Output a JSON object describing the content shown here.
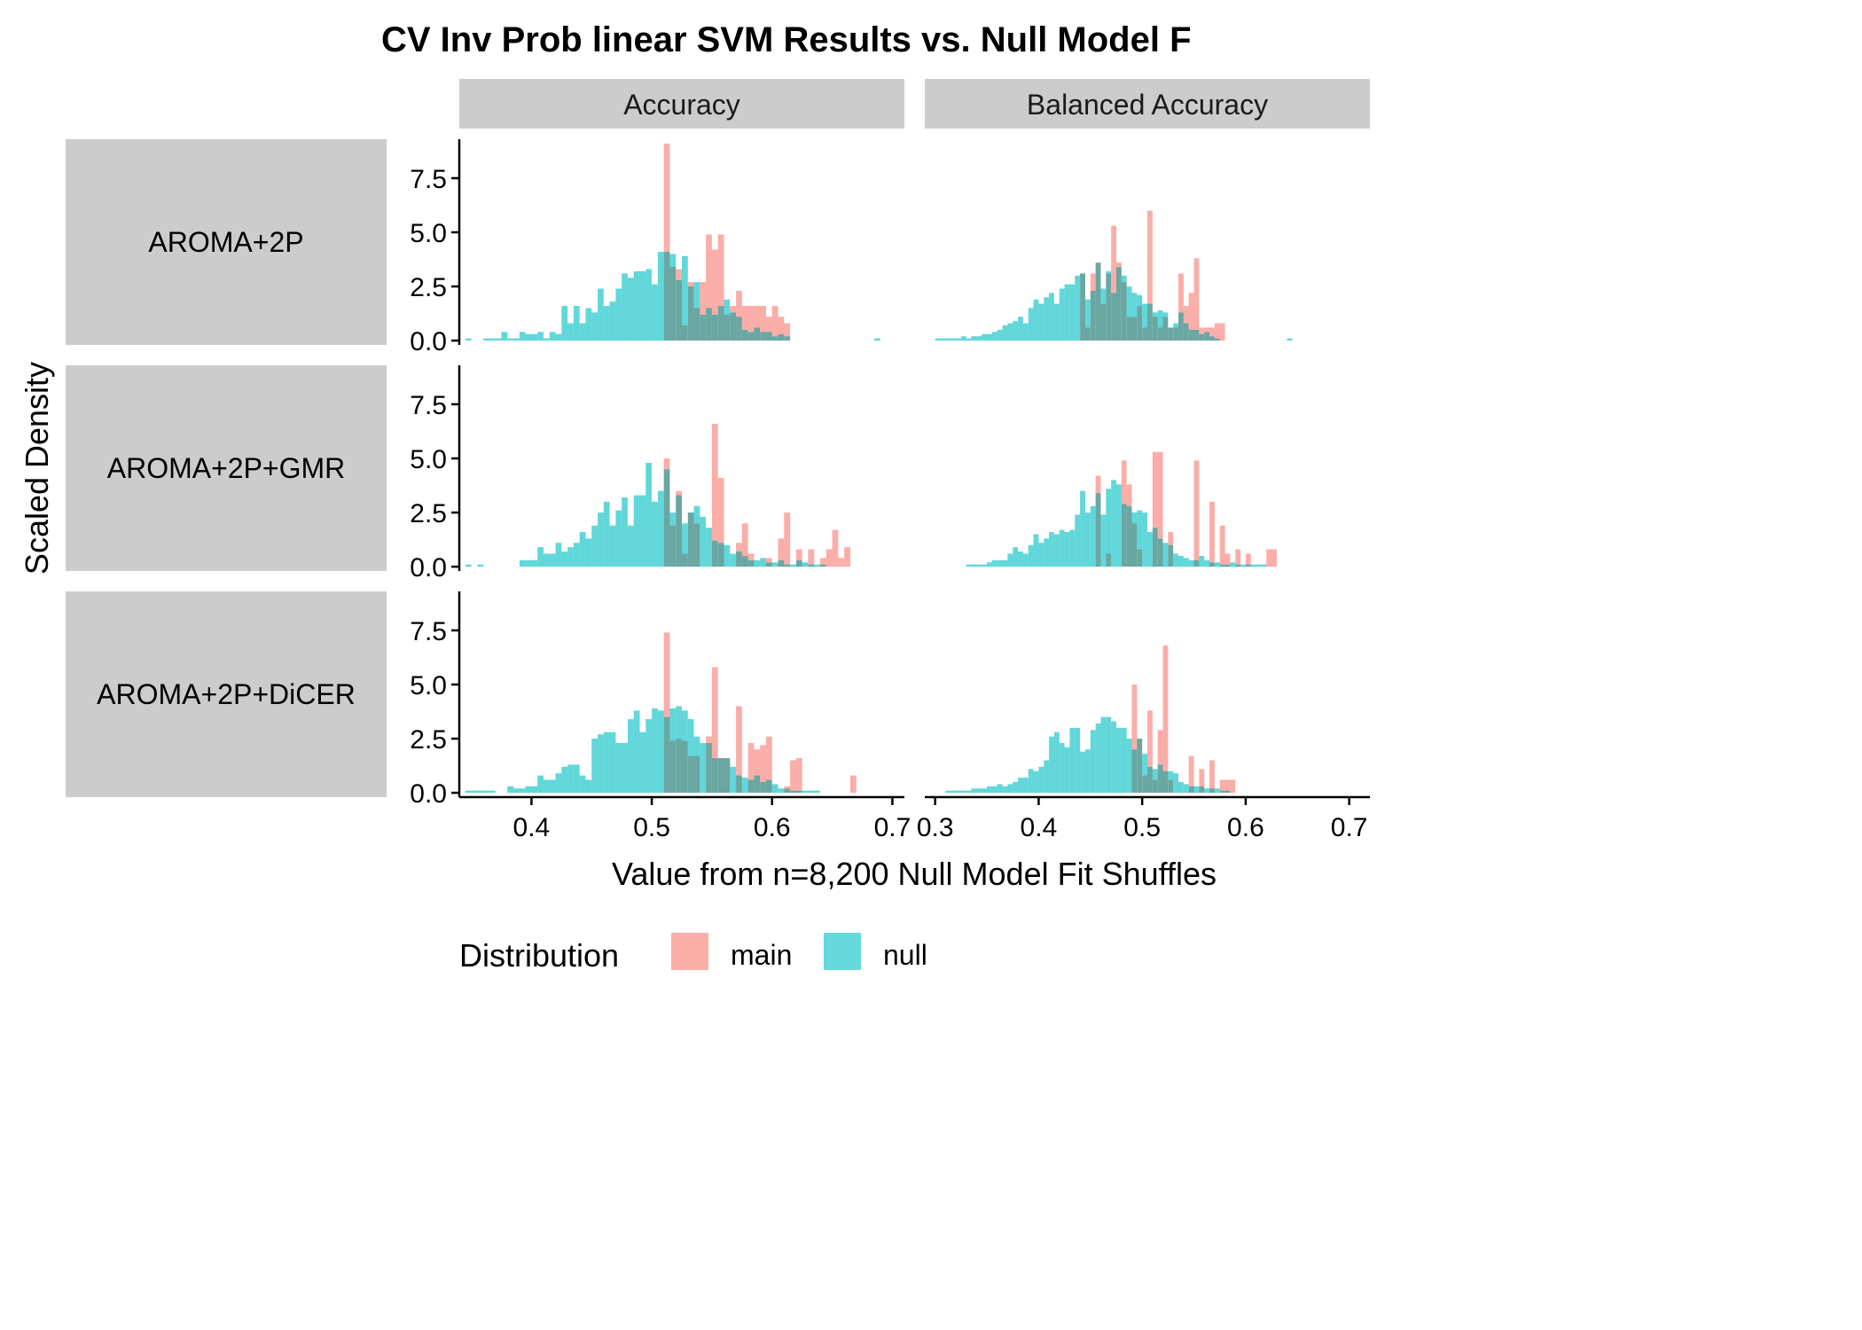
{
  "chart_data": {
    "type": "histogram",
    "title": "CV Inv Prob linear SVM Results vs. Null Model F",
    "xlabel": "Value from n=8,200 Null Model Fit Shuffles",
    "ylabel": "Scaled Density",
    "legend": {
      "title": "Distribution",
      "position": "bottom",
      "items": [
        {
          "name": "main",
          "color": "#F8766D"
        },
        {
          "name": "null",
          "color": "#00BFC4"
        }
      ]
    },
    "overlay_color": "#6AA6A2",
    "grid": false,
    "ylim": [
      -0.2,
      9.3
    ],
    "yticks": [
      0.0,
      2.5,
      5.0,
      7.5
    ],
    "ytick_labels": [
      "0.0",
      "2.5",
      "5.0",
      "7.5"
    ],
    "columns": [
      {
        "label": "Accuracy",
        "xlim": [
          0.34,
          0.71
        ],
        "xticks": [
          0.4,
          0.5,
          0.6,
          0.7
        ],
        "xtick_labels": [
          "0.4",
          "0.5",
          "0.6",
          "0.7"
        ]
      },
      {
        "label": "Balanced Accuracy",
        "xlim": [
          0.29,
          0.72
        ],
        "xticks": [
          0.3,
          0.4,
          0.5,
          0.6,
          0.7
        ],
        "xtick_labels": [
          "0.3",
          "0.4",
          "0.5",
          "0.6",
          "0.7"
        ]
      }
    ],
    "rows": [
      "AROMA+2P",
      "AROMA+2P+GMR",
      "AROMA+2P+DiCER"
    ],
    "panels": [
      {
        "row": 0,
        "col": 0,
        "bin_start": 0.345,
        "bin_width": 0.005,
        "null": [
          0.1,
          0,
          0,
          0.1,
          0.1,
          0.1,
          0.4,
          0.1,
          0.1,
          0.4,
          0.3,
          0.3,
          0.4,
          0.1,
          0.4,
          0.3,
          1.6,
          0.8,
          1.6,
          0.8,
          1.5,
          1.3,
          2.4,
          1.6,
          1.8,
          2.4,
          3.1,
          2.9,
          3.2,
          3.2,
          3.3,
          2.6,
          4.1,
          4.1,
          4.0,
          2.8,
          3.9,
          2.5,
          2.7,
          1.2,
          1.5,
          1.2,
          1.6,
          1.9,
          1.3,
          1.1,
          0.5,
          0.4,
          0.6,
          0.4,
          0.4,
          0.2,
          0.3,
          0.2,
          0,
          0,
          0,
          0,
          0,
          0,
          0,
          0,
          0,
          0,
          0,
          0,
          0,
          0,
          0.1,
          0
        ],
        "main": [
          0,
          0,
          0,
          0,
          0,
          0,
          0,
          0,
          0,
          0,
          0,
          0,
          0,
          0,
          0,
          0,
          0,
          0,
          0,
          0,
          0,
          0,
          0,
          0,
          0,
          0,
          0,
          0,
          0,
          0,
          0,
          0,
          0,
          9.1,
          3.4,
          3.3,
          0.7,
          2.7,
          1.5,
          2.7,
          4.9,
          4.2,
          4.9,
          1.2,
          1.6,
          2.3,
          1.6,
          1.6,
          1.6,
          1.6,
          1.1,
          1.6,
          1.1,
          0.8,
          0,
          0,
          0,
          0,
          0,
          0,
          0,
          0,
          0,
          0,
          0,
          0,
          0,
          0,
          0,
          0
        ]
      },
      {
        "row": 0,
        "col": 1,
        "bin_start": 0.3,
        "bin_width": 0.005,
        "null": [
          0.1,
          0.1,
          0.1,
          0.1,
          0.1,
          0.2,
          0.1,
          0.2,
          0.2,
          0.3,
          0.3,
          0.4,
          0.5,
          0.7,
          0.8,
          0.9,
          1.1,
          0.8,
          1.5,
          1.9,
          1.7,
          2.0,
          2.2,
          1.7,
          2.4,
          2.6,
          2.6,
          3.0,
          3.1,
          1.9,
          2.3,
          3.6,
          2.4,
          3.2,
          2.2,
          3.4,
          3.0,
          2.5,
          2.2,
          2.1,
          1.7,
          1.7,
          1.3,
          1.4,
          1.3,
          0.6,
          0.8,
          1.3,
          0.8,
          0.5,
          0.5,
          0.3,
          0.4,
          0.2,
          0.1,
          0,
          0,
          0,
          0,
          0,
          0,
          0,
          0,
          0,
          0,
          0,
          0,
          0,
          0.1,
          0
        ],
        "main": [
          0,
          0,
          0,
          0,
          0,
          0,
          0,
          0,
          0,
          0,
          0,
          0,
          0,
          0,
          0,
          0,
          0,
          0,
          0,
          0,
          0,
          0,
          0,
          0,
          0,
          0,
          0,
          0,
          3.1,
          0.6,
          3.1,
          3.6,
          1.7,
          3.1,
          5.3,
          3.6,
          2.7,
          1.1,
          1.1,
          1.6,
          0.6,
          6.0,
          1.1,
          0.6,
          1.1,
          0.6,
          0.6,
          3.1,
          1.6,
          2.2,
          3.8,
          0.6,
          0.6,
          0.6,
          0.8,
          0.8,
          0,
          0,
          0,
          0,
          0,
          0,
          0,
          0,
          0,
          0,
          0,
          0,
          0,
          0
        ]
      },
      {
        "row": 1,
        "col": 0,
        "bin_start": 0.345,
        "bin_width": 0.005,
        "null": [
          0.1,
          0,
          0.1,
          0,
          0,
          0,
          0,
          0,
          0,
          0.3,
          0.3,
          0.3,
          0.9,
          0.6,
          0.6,
          1.1,
          0.7,
          0.9,
          1.1,
          1.6,
          1.3,
          1.9,
          2.5,
          3.0,
          1.9,
          2.6,
          3.2,
          1.9,
          3.3,
          3.3,
          4.8,
          3.0,
          3.5,
          4.5,
          2.5,
          3.3,
          2.0,
          2.5,
          2.8,
          2.3,
          1.8,
          1.2,
          1.1,
          1.0,
          0.6,
          0.7,
          0.5,
          0.3,
          0.3,
          0.4,
          0.2,
          0.2,
          0.3,
          0.1,
          0.1,
          0.3,
          0.2,
          0.1,
          0.1,
          0.1,
          0,
          0,
          0,
          0,
          0,
          0,
          0,
          0,
          0,
          0
        ],
        "main": [
          0,
          0,
          0,
          0,
          0,
          0,
          0,
          0,
          0,
          0,
          0,
          0,
          0,
          0,
          0,
          0,
          0,
          0,
          0,
          0,
          0,
          0,
          0,
          0,
          0,
          0,
          0,
          0,
          0,
          0,
          0,
          0,
          0,
          5.0,
          1.9,
          3.5,
          0.6,
          2.5,
          2.0,
          0,
          0,
          6.6,
          4.1,
          0,
          0,
          1.1,
          2.0,
          0.6,
          0,
          0,
          0.4,
          0,
          1.3,
          2.5,
          0,
          0.8,
          0,
          0.8,
          0,
          0.4,
          0.8,
          1.7,
          0.4,
          0.9,
          0,
          0,
          0,
          0,
          0,
          0
        ]
      },
      {
        "row": 1,
        "col": 1,
        "bin_start": 0.33,
        "bin_width": 0.005,
        "null": [
          0.1,
          0.1,
          0.1,
          0.1,
          0.2,
          0.3,
          0.3,
          0.3,
          0.6,
          0.9,
          0.7,
          0.6,
          1.0,
          1.5,
          1.1,
          1.3,
          1.6,
          1.5,
          1.7,
          1.6,
          1.7,
          2.4,
          3.5,
          2.5,
          2.8,
          3.4,
          2.4,
          3.6,
          4.0,
          3.8,
          2.9,
          2.8,
          2.5,
          2.6,
          2.5,
          1.6,
          1.8,
          1.3,
          1.1,
          1.0,
          0.6,
          0.5,
          0.4,
          0.3,
          0.3,
          0.5,
          0.3,
          0.2,
          0.2,
          0.1,
          0.1,
          0.2,
          0.1,
          0.1,
          0.1,
          0.1,
          0.1,
          0.1,
          0,
          0
        ],
        "main": [
          0,
          0,
          0,
          0,
          0,
          0,
          0,
          0,
          0,
          0,
          0,
          0,
          0,
          0,
          0,
          0,
          0,
          0,
          0,
          0,
          0,
          0,
          0,
          0,
          0,
          4.2,
          0,
          0.6,
          0,
          0,
          4.9,
          3.8,
          2.0,
          0.8,
          0,
          0,
          5.3,
          5.3,
          0,
          1.6,
          0,
          0,
          0,
          0,
          4.9,
          0,
          0,
          3.0,
          0,
          1.9,
          0.6,
          0,
          0.8,
          0,
          0.6,
          0,
          0,
          0,
          0.8,
          0.8
        ]
      },
      {
        "row": 2,
        "col": 0,
        "bin_start": 0.345,
        "bin_width": 0.005,
        "null": [
          0.1,
          0.1,
          0.1,
          0.1,
          0.1,
          0,
          0,
          0.3,
          0.2,
          0.2,
          0.3,
          0.3,
          0.8,
          0.6,
          0.6,
          0.9,
          1.2,
          1.3,
          1.3,
          0.8,
          0.6,
          2.5,
          2.7,
          2.8,
          2.8,
          2.3,
          2.3,
          3.4,
          3.8,
          2.8,
          3.4,
          3.9,
          3.8,
          3.5,
          3.9,
          4.0,
          3.8,
          3.4,
          2.6,
          2.3,
          2.3,
          1.6,
          1.6,
          1.6,
          1.2,
          0.8,
          0.7,
          0.6,
          0.8,
          0.5,
          0.6,
          0.4,
          0.2,
          0.2,
          0.1,
          0.1,
          0.1,
          0.1,
          0.1,
          0,
          0,
          0,
          0,
          0,
          0,
          0,
          0,
          0,
          0,
          0
        ],
        "main": [
          0,
          0,
          0,
          0,
          0,
          0,
          0,
          0,
          0,
          0,
          0,
          0,
          0,
          0,
          0,
          0,
          0,
          0,
          0,
          0,
          0,
          0,
          0,
          0,
          0,
          0,
          0,
          0,
          0,
          0,
          0,
          0,
          0,
          7.4,
          2.4,
          2.5,
          2.4,
          1.7,
          1.7,
          0,
          2.6,
          5.8,
          1.6,
          1.6,
          0,
          4.0,
          0,
          2.3,
          2.0,
          2.2,
          2.6,
          0,
          0,
          0.3,
          1.5,
          1.6,
          0,
          0,
          0,
          0,
          0,
          0,
          0,
          0,
          0.8,
          0,
          0,
          0,
          0,
          0
        ]
      },
      {
        "row": 2,
        "col": 1,
        "bin_start": 0.31,
        "bin_width": 0.005,
        "null": [
          0.1,
          0.1,
          0.1,
          0.1,
          0.1,
          0.2,
          0.2,
          0.2,
          0.3,
          0.3,
          0.4,
          0.3,
          0.4,
          0.5,
          0.7,
          0.7,
          1.1,
          1.0,
          1.2,
          1.5,
          2.6,
          2.8,
          2.3,
          2.1,
          3.0,
          3.0,
          1.9,
          2.0,
          2.9,
          3.2,
          3.5,
          3.5,
          3.3,
          3.0,
          3.0,
          2.5,
          2.0,
          2.5,
          1.8,
          1.2,
          1.1,
          1.3,
          1.0,
          1.0,
          0.9,
          0.5,
          0.4,
          0.3,
          0.3,
          0.3,
          0.2,
          0.2,
          0.2,
          0.1,
          0.1,
          0,
          0,
          0,
          0,
          0,
          0,
          0,
          0,
          0,
          0,
          0,
          0,
          0,
          0,
          0
        ],
        "main": [
          0,
          0,
          0,
          0,
          0,
          0,
          0,
          0,
          0,
          0,
          0,
          0,
          0,
          0,
          0,
          0,
          0,
          0,
          0,
          0,
          0,
          0,
          0,
          0,
          0,
          0,
          0,
          0,
          0,
          0,
          0,
          0,
          0,
          0,
          0,
          0,
          5.0,
          2.5,
          0.8,
          3.8,
          0.6,
          2.9,
          6.8,
          0.6,
          0,
          0,
          0,
          1.7,
          0,
          1.1,
          0,
          1.5,
          0,
          0.6,
          0.6,
          0.6,
          0,
          0,
          0,
          0,
          0,
          0,
          0,
          0,
          0,
          0,
          0,
          0,
          0,
          0
        ]
      }
    ]
  }
}
